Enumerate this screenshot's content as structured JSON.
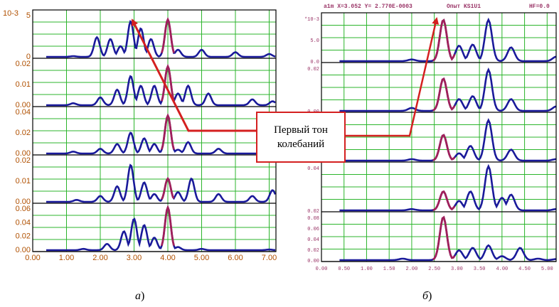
{
  "chart_data": [
    {
      "type": "line",
      "panels": [
        {
          "y_exp_label": "10-3",
          "yticks": [
            "5",
            "0"
          ],
          "ylim": [
            0,
            12
          ]
        },
        {
          "yticks": [
            "0.02",
            "0.01",
            "0.00"
          ],
          "ylim": [
            0,
            0.022
          ]
        },
        {
          "yticks": [
            "0.04",
            "0.02",
            "0.00"
          ],
          "ylim": [
            0,
            0.045
          ]
        },
        {
          "yticks": [
            "0.02",
            "0.01",
            "0.00"
          ],
          "ylim": [
            0,
            0.022
          ]
        },
        {
          "yticks": [
            "0.06",
            "0.04",
            "0.02",
            "0.00"
          ],
          "ylim": [
            0,
            0.068
          ]
        }
      ],
      "xticks": [
        "0.00",
        "1.00",
        "2.00",
        "3.00",
        "4.00",
        "5.00",
        "6.00",
        "7.00"
      ],
      "xlim": [
        0,
        7.2
      ],
      "grid": true,
      "peaks": [
        [
          [
            1.2,
            0.2
          ],
          [
            1.9,
            5.5
          ],
          [
            2.3,
            5
          ],
          [
            2.6,
            3
          ],
          [
            2.9,
            10
          ],
          [
            3.2,
            8
          ],
          [
            3.5,
            5
          ],
          [
            4.0,
            10.5
          ],
          [
            4.3,
            2
          ],
          [
            5.0,
            2
          ],
          [
            6.0,
            1.3
          ],
          [
            7.0,
            0.8
          ]
        ],
        [
          [
            1.2,
            0.001
          ],
          [
            2.0,
            0.004
          ],
          [
            2.5,
            0.008
          ],
          [
            2.9,
            0.015
          ],
          [
            3.2,
            0.01
          ],
          [
            3.6,
            0.01
          ],
          [
            4.0,
            0.02
          ],
          [
            4.3,
            0.006
          ],
          [
            4.6,
            0.01
          ],
          [
            5.2,
            0.006
          ],
          [
            6.5,
            0.003
          ],
          [
            7.1,
            0.002
          ]
        ],
        [
          [
            1.2,
            0.002
          ],
          [
            2.0,
            0.005
          ],
          [
            2.5,
            0.01
          ],
          [
            2.9,
            0.022
          ],
          [
            3.3,
            0.016
          ],
          [
            3.6,
            0.01
          ],
          [
            4.0,
            0.04
          ],
          [
            4.3,
            0.004
          ],
          [
            4.6,
            0.012
          ],
          [
            5.5,
            0.005
          ],
          [
            7.0,
            0.002
          ]
        ],
        [
          [
            1.3,
            0.001
          ],
          [
            2.0,
            0.003
          ],
          [
            2.5,
            0.008
          ],
          [
            2.9,
            0.019
          ],
          [
            3.3,
            0.01
          ],
          [
            3.6,
            0.004
          ],
          [
            4.0,
            0.012
          ],
          [
            4.3,
            0.005
          ],
          [
            4.7,
            0.012
          ],
          [
            5.5,
            0.004
          ],
          [
            6.5,
            0.003
          ],
          [
            7.1,
            0.006
          ]
        ],
        [
          [
            1.5,
            0.002
          ],
          [
            2.2,
            0.01
          ],
          [
            2.7,
            0.03
          ],
          [
            3.0,
            0.05
          ],
          [
            3.3,
            0.04
          ],
          [
            3.6,
            0.02
          ],
          [
            4.0,
            0.068
          ],
          [
            4.3,
            0.005
          ],
          [
            5.0,
            0.002
          ],
          [
            7.0,
            0.001
          ]
        ]
      ]
    },
    {
      "type": "line",
      "header": {
        "readout": "a1m X=3.052 Y= 2.770E-0003",
        "title": "Опыт KS1U1",
        "hf": "HF=0.0"
      },
      "panels": [
        {
          "yticks": [
            "*10-3",
            "5.0",
            "0.0"
          ],
          "ylim": [
            0,
            8
          ]
        },
        {
          "yticks": [
            "0.02",
            "0.00"
          ],
          "ylim": [
            0,
            0.03
          ]
        },
        {
          "yticks": [
            "0.04",
            "0.02",
            "0.00"
          ],
          "ylim": [
            0,
            0.06
          ]
        },
        {
          "yticks": [
            "0.04",
            "0.02"
          ],
          "ylim": [
            0,
            0.07
          ]
        },
        {
          "yticks": [
            "0.08",
            "0.06",
            "0.04",
            "0.02",
            "0.00"
          ],
          "ylim": [
            0,
            0.09
          ]
        }
      ],
      "xticks": [
        "0.00",
        "0.50",
        "1.00",
        "1.50",
        "2.00",
        "2.50",
        "3.00",
        "3.50",
        "4.00",
        "4.50",
        "5.00"
      ],
      "xlim": [
        0,
        5.2
      ],
      "grid": true,
      "peaks": [
        [
          [
            2.0,
            0.3
          ],
          [
            2.7,
            7.5
          ],
          [
            3.05,
            2.8
          ],
          [
            3.35,
            3
          ],
          [
            3.7,
            7.5
          ],
          [
            4.2,
            2.5
          ],
          [
            5.2,
            0.8
          ]
        ],
        [
          [
            2.0,
            0.002
          ],
          [
            2.7,
            0.022
          ],
          [
            3.05,
            0.008
          ],
          [
            3.35,
            0.01
          ],
          [
            3.7,
            0.028
          ],
          [
            4.2,
            0.008
          ],
          [
            5.2,
            0.003
          ]
        ],
        [
          [
            2.0,
            0.002
          ],
          [
            2.7,
            0.035
          ],
          [
            3.05,
            0.01
          ],
          [
            3.3,
            0.02
          ],
          [
            3.7,
            0.055
          ],
          [
            4.2,
            0.015
          ],
          [
            5.2,
            0.002
          ]
        ],
        [
          [
            2.0,
            0.002
          ],
          [
            2.7,
            0.03
          ],
          [
            3.05,
            0.015
          ],
          [
            3.3,
            0.03
          ],
          [
            3.7,
            0.07
          ],
          [
            4.0,
            0.02
          ],
          [
            4.2,
            0.025
          ],
          [
            5.2,
            0.002
          ]
        ],
        [
          [
            1.8,
            0.003
          ],
          [
            2.7,
            0.088
          ],
          [
            3.05,
            0.02
          ],
          [
            3.35,
            0.025
          ],
          [
            3.7,
            0.03
          ],
          [
            4.0,
            0.008
          ],
          [
            4.4,
            0.025
          ],
          [
            4.8,
            0.003
          ],
          [
            5.2,
            0.002
          ]
        ]
      ]
    }
  ],
  "callout": {
    "line1": "Первый тон",
    "line2": "колебаний"
  },
  "captions": {
    "a": "а",
    "b": "б"
  },
  "colors": {
    "trace": "#1a1a9a",
    "highlight": "#a0205a",
    "grid": "#2cb52c",
    "arrow": "#d42020"
  }
}
